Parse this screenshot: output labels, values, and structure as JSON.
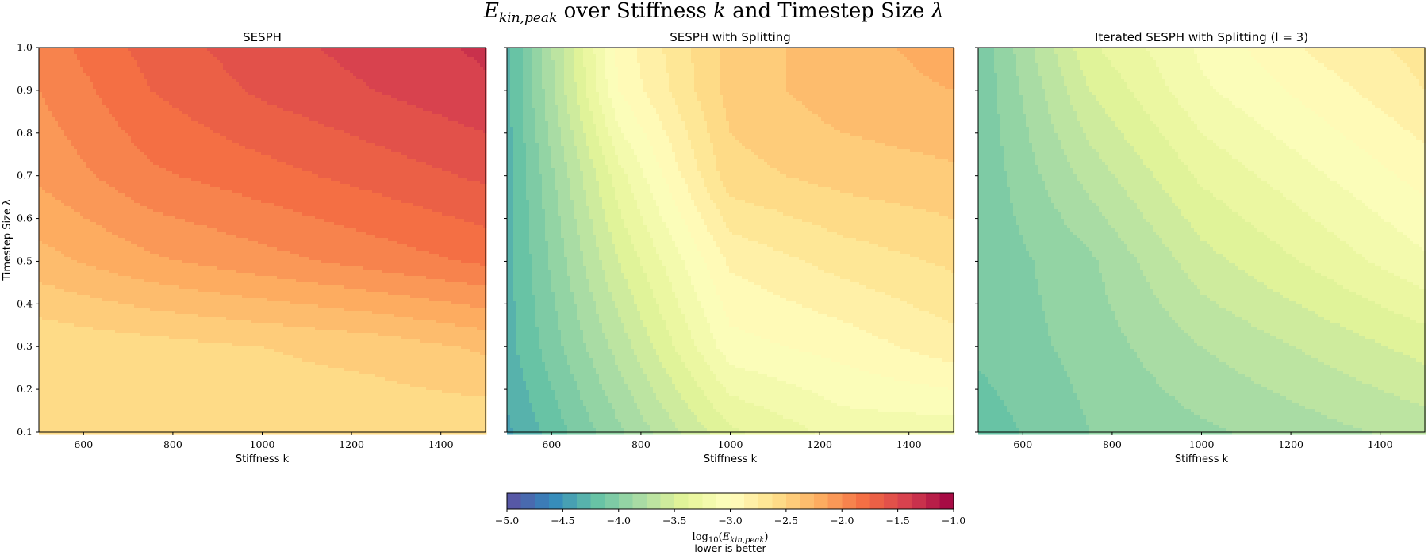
{
  "chart_data": {
    "type": "heatmap",
    "title": "E_kin,peak over Stiffness k and Timestep Size λ",
    "x": [
      500,
      750,
      1000,
      1250,
      1500
    ],
    "y": [
      0.1,
      0.3,
      0.5,
      0.7,
      0.9,
      1.0
    ],
    "xlim": [
      500,
      1500
    ],
    "ylim": [
      0.1,
      1.0
    ],
    "x_ticks": [
      "600",
      "800",
      "1000",
      "1200",
      "1400"
    ],
    "y_ticks": [
      "0.1",
      "0.2",
      "0.3",
      "0.4",
      "0.5",
      "0.6",
      "0.7",
      "0.8",
      "0.9",
      "1.0"
    ],
    "panels": [
      {
        "title": "SESPH",
        "xlabel": "Stiffness k",
        "ylabel": "Timestep Size λ",
        "z": [
          [
            -2.6,
            -2.6,
            -2.6,
            -2.6,
            -2.6
          ],
          [
            -2.6,
            -2.55,
            -2.5,
            -2.45,
            -2.35
          ],
          [
            -2.3,
            -2.15,
            -2.05,
            -1.95,
            -1.85
          ],
          [
            -2.1,
            -1.9,
            -1.8,
            -1.7,
            -1.6
          ],
          [
            -2.0,
            -1.75,
            -1.6,
            -1.5,
            -1.4
          ],
          [
            -1.95,
            -1.7,
            -1.55,
            -1.45,
            -1.35
          ]
        ]
      },
      {
        "title": "SESPH with Splitting",
        "xlabel": "Stiffness k",
        "ylabel": "",
        "z": [
          [
            -4.4,
            -3.9,
            -3.4,
            -3.2,
            -3.2
          ],
          [
            -4.3,
            -3.7,
            -3.05,
            -2.95,
            -2.8
          ],
          [
            -4.3,
            -3.5,
            -2.85,
            -2.7,
            -2.6
          ],
          [
            -4.3,
            -3.3,
            -2.55,
            -2.45,
            -2.4
          ],
          [
            -4.3,
            -3.0,
            -2.45,
            -2.3,
            -2.25
          ],
          [
            -4.3,
            -2.95,
            -2.45,
            -2.3,
            -2.2
          ]
        ]
      },
      {
        "title": "Iterated SESPH with Splitting (l = 3)",
        "xlabel": "Stiffness k",
        "ylabel": "",
        "z": [
          [
            -4.2,
            -4.0,
            -3.9,
            -3.8,
            -3.7
          ],
          [
            -4.1,
            -3.95,
            -3.75,
            -3.6,
            -3.45
          ],
          [
            -4.1,
            -3.9,
            -3.55,
            -3.35,
            -3.15
          ],
          [
            -4.1,
            -3.7,
            -3.35,
            -3.15,
            -2.95
          ],
          [
            -4.1,
            -3.5,
            -3.15,
            -2.95,
            -2.75
          ],
          [
            -4.1,
            -3.4,
            -3.1,
            -2.85,
            -2.7
          ]
        ]
      }
    ],
    "colorbar": {
      "range": [
        -5.0,
        -1.0
      ],
      "ticks": [
        "−5.0",
        "−4.5",
        "−4.0",
        "−3.5",
        "−3.0",
        "−2.5",
        "−2.0",
        "−1.5",
        "−1.0"
      ],
      "label": "log10(E_kin,peak)",
      "note": "lower is better",
      "colormap": "Spectral_r"
    }
  }
}
